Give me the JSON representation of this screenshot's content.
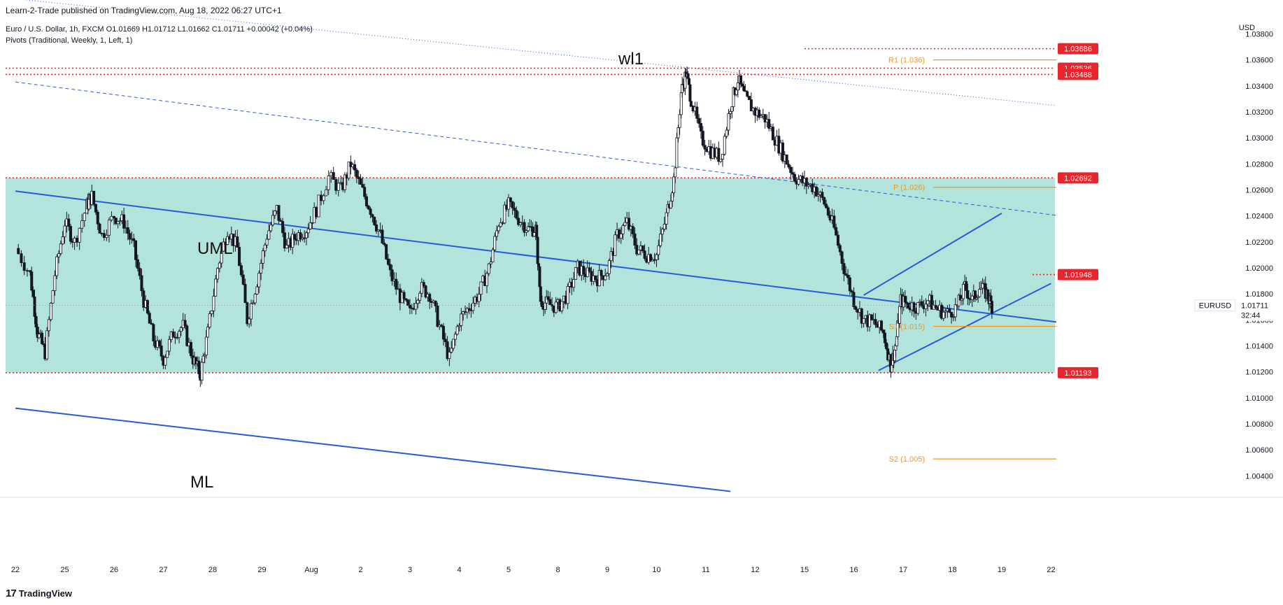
{
  "header": {
    "publisher": "Learn-2-Trade published on TradingView.com, Aug 18, 2022 06:27 UTC+1",
    "ohlc": "Euro / U.S. Dollar, 1h, FXCM  O1.01669  H1.01712  L1.01662  C1.01711  +0.00042 (+0.04%)",
    "pivot_info": "Pivots (Traditional, Weekly, 1, Left, 1)",
    "currency": "USD"
  },
  "footer": {
    "logo": "17",
    "brand": "TradingView"
  },
  "colors": {
    "zone": "#b2e4dc",
    "resistance": "#e8242c",
    "pivot": "#f7931a",
    "channel": "#2a5bd7",
    "candle": "#131722"
  },
  "chart_data": {
    "type": "candlestick",
    "symbol": "EURUSD",
    "timeframe": "1h",
    "ylim": [
      1.0024,
      1.0398
    ],
    "y_ticks": [
      "1.03800",
      "1.03600",
      "1.03400",
      "1.03200",
      "1.03000",
      "1.02800",
      "1.02600",
      "1.02400",
      "1.02200",
      "1.02000",
      "1.01800",
      "1.01600",
      "1.01400",
      "1.01200",
      "1.01000",
      "1.00800",
      "1.00600",
      "1.00400"
    ],
    "x_ticks": [
      "22",
      "25",
      "26",
      "27",
      "28",
      "29",
      "Aug",
      "2",
      "3",
      "4",
      "5",
      "8",
      "9",
      "10",
      "11",
      "12",
      "15",
      "16",
      "17",
      "18",
      "19",
      "22"
    ],
    "current_price": {
      "label": "EURUSD",
      "value": "1.01711",
      "countdown": "32:44"
    },
    "horizontal_levels": [
      {
        "value": 1.03686,
        "label": "1.03686"
      },
      {
        "value": 1.03536,
        "label": "1.03536"
      },
      {
        "value": 1.03488,
        "label": "1.03488"
      },
      {
        "value": 1.02692,
        "label": "1.02692"
      },
      {
        "value": 1.01948,
        "label": "1.01948"
      },
      {
        "value": 1.01193,
        "label": "1.01193"
      }
    ],
    "zone": {
      "from": 1.01193,
      "to": 1.02692
    },
    "pivots": [
      {
        "label": "R1 (1.036)",
        "value": 1.036
      },
      {
        "label": "P (1.026)",
        "value": 1.0262
      },
      {
        "label": "S1 (1.015)",
        "value": 1.0155
      },
      {
        "label": "S2 (1.005)",
        "value": 1.0053
      }
    ],
    "annotations": [
      "wl1",
      "UML",
      "ML"
    ],
    "trend_lines": [
      {
        "name": "wl1",
        "style": "dotted",
        "points": [
          [
            0,
            1.0407
          ],
          [
            21.6,
            1.0323
          ]
        ]
      },
      {
        "name": "wl1-parallel",
        "style": "dashed",
        "points": [
          [
            0,
            1.0343
          ],
          [
            21.6,
            1.0238
          ]
        ]
      },
      {
        "name": "UML",
        "style": "solid",
        "points": [
          [
            0,
            1.0259
          ],
          [
            21.6,
            1.0156
          ]
        ]
      },
      {
        "name": "ML",
        "style": "solid",
        "points": [
          [
            0,
            1.0092
          ],
          [
            14.5,
            1.0028
          ]
        ]
      },
      {
        "name": "channel-upper",
        "style": "solid",
        "points": [
          [
            17.2,
            1.0179
          ],
          [
            20.0,
            1.0242
          ]
        ]
      },
      {
        "name": "channel-lower",
        "style": "solid",
        "points": [
          [
            17.5,
            1.0121
          ],
          [
            21.0,
            1.0188
          ]
        ]
      }
    ],
    "price_path": [
      [
        0.0,
        1.0215
      ],
      [
        0.3,
        1.0195
      ],
      [
        0.45,
        1.015
      ],
      [
        0.6,
        1.0135
      ],
      [
        0.8,
        1.0195
      ],
      [
        1.0,
        1.0235
      ],
      [
        1.2,
        1.022
      ],
      [
        1.45,
        1.0248
      ],
      [
        1.55,
        1.0255
      ],
      [
        1.75,
        1.0225
      ],
      [
        2.0,
        1.024
      ],
      [
        2.2,
        1.0235
      ],
      [
        2.4,
        1.0215
      ],
      [
        2.6,
        1.0175
      ],
      [
        2.8,
        1.0145
      ],
      [
        3.0,
        1.013
      ],
      [
        3.2,
        1.015
      ],
      [
        3.4,
        1.0155
      ],
      [
        3.6,
        1.013
      ],
      [
        3.75,
        1.0118
      ],
      [
        3.9,
        1.015
      ],
      [
        4.1,
        1.02
      ],
      [
        4.3,
        1.023
      ],
      [
        4.5,
        1.0215
      ],
      [
        4.7,
        1.016
      ],
      [
        4.9,
        1.019
      ],
      [
        5.1,
        1.0225
      ],
      [
        5.3,
        1.0245
      ],
      [
        5.5,
        1.0215
      ],
      [
        5.7,
        1.0225
      ],
      [
        5.9,
        1.023
      ],
      [
        6.1,
        1.0245
      ],
      [
        6.35,
        1.027
      ],
      [
        6.6,
        1.026
      ],
      [
        6.8,
        1.028
      ],
      [
        7.0,
        1.0262
      ],
      [
        7.2,
        1.0245
      ],
      [
        7.4,
        1.0225
      ],
      [
        7.6,
        1.0195
      ],
      [
        7.8,
        1.0178
      ],
      [
        8.0,
        1.0165
      ],
      [
        8.2,
        1.0185
      ],
      [
        8.4,
        1.018
      ],
      [
        8.6,
        1.0155
      ],
      [
        8.8,
        1.013
      ],
      [
        9.0,
        1.016
      ],
      [
        9.2,
        1.017
      ],
      [
        9.4,
        1.018
      ],
      [
        9.6,
        1.02
      ],
      [
        9.8,
        1.0235
      ],
      [
        10.0,
        1.0248
      ],
      [
        10.2,
        1.0238
      ],
      [
        10.4,
        1.023
      ],
      [
        10.55,
        1.023
      ],
      [
        10.65,
        1.0175
      ],
      [
        10.8,
        1.0172
      ],
      [
        11.0,
        1.017
      ],
      [
        11.2,
        1.018
      ],
      [
        11.4,
        1.02
      ],
      [
        11.6,
        1.0195
      ],
      [
        11.8,
        1.0192
      ],
      [
        12.0,
        1.0198
      ],
      [
        12.2,
        1.0225
      ],
      [
        12.4,
        1.0235
      ],
      [
        12.6,
        1.0215
      ],
      [
        12.8,
        1.021
      ],
      [
        13.0,
        1.021
      ],
      [
        13.2,
        1.024
      ],
      [
        13.35,
        1.0268
      ],
      [
        13.5,
        1.0335
      ],
      [
        13.6,
        1.035
      ],
      [
        13.7,
        1.033
      ],
      [
        13.9,
        1.03
      ],
      [
        14.1,
        1.029
      ],
      [
        14.3,
        1.0285
      ],
      [
        14.5,
        1.0325
      ],
      [
        14.65,
        1.0345
      ],
      [
        14.8,
        1.033
      ],
      [
        15.0,
        1.032
      ],
      [
        15.2,
        1.0315
      ],
      [
        15.4,
        1.03
      ],
      [
        15.6,
        1.0285
      ],
      [
        15.8,
        1.027
      ],
      [
        16.0,
        1.0265
      ],
      [
        16.2,
        1.0262
      ],
      [
        16.4,
        1.025
      ],
      [
        16.6,
        1.023
      ],
      [
        16.8,
        1.02
      ],
      [
        17.0,
        1.0175
      ],
      [
        17.2,
        1.016
      ],
      [
        17.4,
        1.0158
      ],
      [
        17.6,
        1.015
      ],
      [
        17.75,
        1.0125
      ],
      [
        17.85,
        1.014
      ],
      [
        17.95,
        1.0175
      ],
      [
        18.1,
        1.0172
      ],
      [
        18.3,
        1.017
      ],
      [
        18.5,
        1.0175
      ],
      [
        18.7,
        1.0168
      ],
      [
        18.9,
        1.0165
      ],
      [
        19.1,
        1.017
      ],
      [
        19.25,
        1.0185
      ],
      [
        19.4,
        1.0175
      ],
      [
        19.55,
        1.0185
      ],
      [
        19.7,
        1.018
      ],
      [
        19.8,
        1.0171
      ]
    ]
  }
}
